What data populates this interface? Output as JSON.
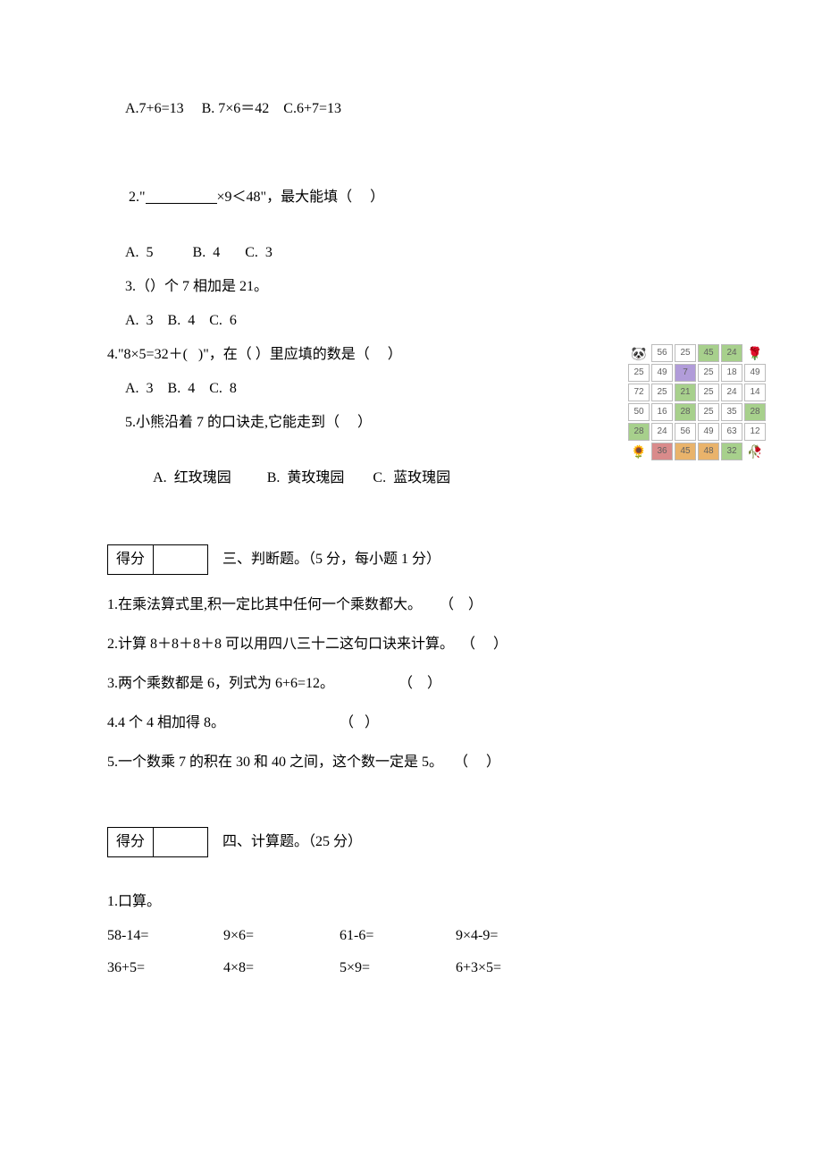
{
  "q1_options": "A.7+6=13     B. 7×6＝42    C.6+7=13",
  "q2": {
    "stem_prefix": "2.\"",
    "stem_suffix": "×9＜48\"，最大能填（     ）",
    "opts": "A.  5           B.  4       C.  3"
  },
  "q3": {
    "stem": "3.（）个 7 相加是 21。",
    "opts": "A.  3    B.  4    C.  6"
  },
  "q4": {
    "stem": "4.\"8×5=32＋(   )\"，在（ ）里应填的数是（     ）",
    "opts": "A.  3    B.  4    C.  8"
  },
  "q5": {
    "stem": "5.小熊沿着 7 的口诀走,它能走到（     ）",
    "optA_label": "A.",
    "optA_text": "红玫瑰园",
    "optB_label": "B.",
    "optB_text": "黄玫瑰园",
    "optC_label": "C.",
    "optC_text": "蓝玫瑰园"
  },
  "grid": {
    "corners": {
      "tl": "🐼",
      "tr": "🌹",
      "bl": "🌻",
      "br": "🥀"
    },
    "rows": [
      [
        "56",
        "25",
        "45",
        "24"
      ],
      [
        "25",
        "49",
        "7",
        "25",
        "18",
        "49"
      ],
      [
        "72",
        "25",
        "21",
        "25",
        "24",
        "14"
      ],
      [
        "50",
        "16",
        "28",
        "25",
        "35",
        "28"
      ],
      [
        "28",
        "24",
        "56",
        "49",
        "63",
        "12"
      ],
      [
        "36",
        "45",
        "48",
        "32"
      ]
    ],
    "colors": {
      "default_bg": "#ffffff",
      "green_bg": "#a7d08c",
      "purple_bg": "#b19cd9",
      "red_bg": "#d98b8b",
      "orange_bg": "#e9b36b",
      "text": "#606060",
      "border": "#bbbbbb"
    },
    "highlights": {
      "r0c2": "#a7d08c",
      "r0c3": "#a7d08c",
      "r1c2": "#b19cd9",
      "r2c2": "#a7d08c",
      "r3c2": "#a7d08c",
      "r3c5": "#a7d08c",
      "r4c0": "#a7d08c",
      "r5c0": "#d98b8b",
      "r5c1": "#e9b36b",
      "r5c2": "#e9b36b",
      "r5c3": "#a7d08c"
    }
  },
  "score_label": "得分",
  "section3": {
    "title": "三、判断题。（5 分，每小题 1 分）",
    "items": [
      "1.在乘法算式里,积一定比其中任何一个乘数都大。     （    ）",
      "2.计算 8＋8＋8＋8 可以用四八三十二这句口诀来计算。  （     ）",
      "3.两个乘数都是 6，列式为 6+6=12。                  （    ）",
      "4.4 个 4 相加得 8。                                （   ）",
      "5.一个数乘 7 的积在 30 和 40 之间，这个数一定是 5。   （     ）"
    ]
  },
  "section4": {
    "title": "四、计算题。（25 分）",
    "q1_label": "1.口算。",
    "rows": [
      [
        "58-14=",
        "9×6=",
        "61-6=",
        "9×4-9="
      ],
      [
        "36+5=",
        "4×8=",
        "5×9=",
        "6+3×5="
      ]
    ]
  }
}
